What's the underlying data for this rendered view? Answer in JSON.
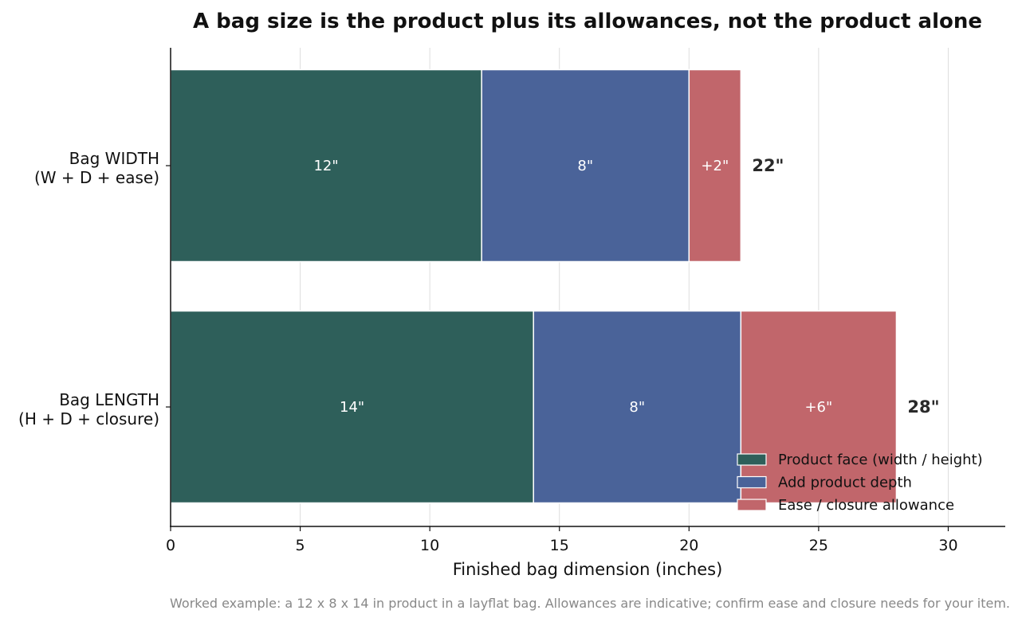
{
  "chart_data": {
    "type": "bar",
    "orientation": "horizontal",
    "stacked": true,
    "title": "A bag size is the product plus its allowances, not the product alone",
    "xlabel": "Finished bag dimension (inches)",
    "xlim": [
      0,
      32.2
    ],
    "xticks": [
      0,
      5,
      10,
      15,
      20,
      25,
      30
    ],
    "grid": "vertical",
    "categories": [
      {
        "line1": "Bag WIDTH",
        "line2": "(W + D + ease)"
      },
      {
        "line1": "Bag LENGTH",
        "line2": "(H + D + closure)"
      }
    ],
    "series": [
      {
        "name": "Product face (width / height)",
        "color": "#2e5f5a",
        "values": [
          12,
          14
        ],
        "labels": [
          "12\"",
          "14\""
        ]
      },
      {
        "name": "Add product depth",
        "color": "#4a6399",
        "values": [
          8,
          8
        ],
        "labels": [
          "8\"",
          "8\""
        ]
      },
      {
        "name": "Ease / closure allowance",
        "color": "#c1666b",
        "values": [
          2,
          6
        ],
        "labels": [
          "+2\"",
          "+6\""
        ]
      }
    ],
    "totals": [
      "22\"",
      "28\""
    ],
    "legend_position": "bottom-right",
    "caption": "Worked example: a 12 x 8 x 14 in product in a layflat bag. Allowances are indicative; confirm ease and closure needs for your item."
  }
}
